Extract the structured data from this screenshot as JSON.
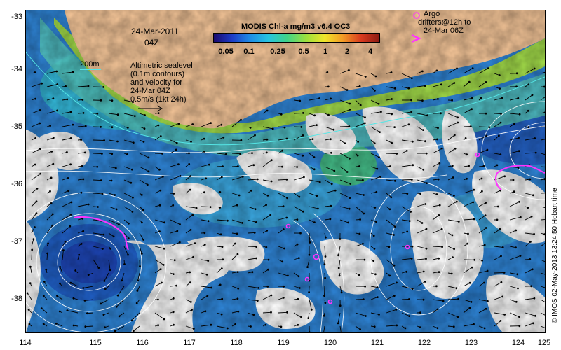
{
  "map": {
    "date": "24-Mar-2011",
    "time": "04Z",
    "colorbar_title": "MODIS Chl-a mg/m3 v6.4 OC3",
    "colorbar_ticks": [
      "0.05",
      "0.1",
      "0.25",
      "0.5",
      "1",
      "2",
      "4"
    ],
    "colorbar_colors": [
      "#1a0a6e",
      "#1d3cc7",
      "#1e8de6",
      "#27c4e0",
      "#3fd38a",
      "#9ee03c",
      "#f0e52a",
      "#f39a26",
      "#d83a1f",
      "#8a1a12"
    ],
    "contour_label": "200m",
    "legend_lines": [
      "Altimetric sealevel",
      "(0.1m contours)",
      "and velocity for",
      "24-Mar 04Z",
      "0.5m/s (1kt 24h)"
    ],
    "argo_lines": [
      "Argo",
      "drifters@12h to",
      "24-Mar 06Z"
    ],
    "credit": "© IMOS 02-May-2013 13:24:50 Hobart time",
    "lat_labels": [
      "-33",
      "-34",
      "-35",
      "-36",
      "-37",
      "-38"
    ],
    "lon_labels": [
      "114",
      "115",
      "116",
      "117",
      "118",
      "119",
      "120",
      "121",
      "122",
      "123",
      "124",
      "125"
    ],
    "colors": {
      "land": "#f8c89a",
      "ocean": "#2f86d9",
      "cloud": "#ffffff",
      "argo": "#ff33ff"
    }
  }
}
